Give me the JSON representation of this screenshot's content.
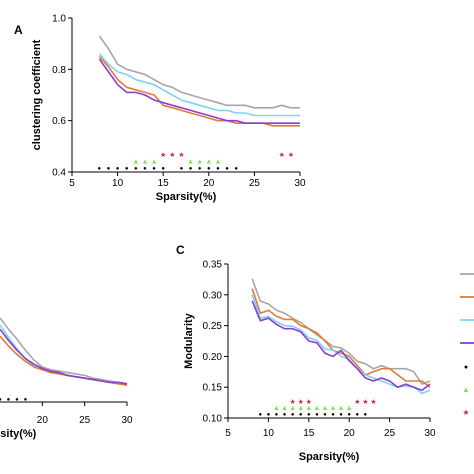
{
  "chart_data": [
    {
      "panel": "A",
      "type": "line",
      "xlabel": "Sparsity(%)",
      "ylabel": "clustering coefficient",
      "xlim": [
        5,
        30
      ],
      "ylim": [
        0.4,
        1.0
      ],
      "xticks": [
        "5",
        "10",
        "15",
        "20",
        "25",
        "30"
      ],
      "yticks": [
        "0.4",
        "0.6",
        "0.8",
        "1.0"
      ],
      "x": [
        8,
        9,
        10,
        11,
        12,
        13,
        14,
        15,
        16,
        17,
        18,
        19,
        20,
        21,
        22,
        23,
        24,
        25,
        26,
        27,
        28,
        29,
        30
      ],
      "series": [
        {
          "color": "#a6a6a6",
          "values": [
            0.93,
            0.88,
            0.82,
            0.8,
            0.79,
            0.78,
            0.76,
            0.74,
            0.73,
            0.71,
            0.7,
            0.69,
            0.68,
            0.67,
            0.66,
            0.66,
            0.66,
            0.65,
            0.65,
            0.65,
            0.66,
            0.65,
            0.65
          ]
        },
        {
          "color": "#7fd3ee",
          "values": [
            0.86,
            0.82,
            0.79,
            0.78,
            0.76,
            0.75,
            0.74,
            0.72,
            0.7,
            0.68,
            0.67,
            0.66,
            0.65,
            0.64,
            0.64,
            0.63,
            0.63,
            0.62,
            0.62,
            0.62,
            0.62,
            0.62,
            0.62
          ]
        },
        {
          "color": "#e07b39",
          "values": [
            0.85,
            0.81,
            0.76,
            0.73,
            0.72,
            0.71,
            0.7,
            0.66,
            0.65,
            0.64,
            0.63,
            0.62,
            0.61,
            0.6,
            0.6,
            0.59,
            0.59,
            0.59,
            0.59,
            0.58,
            0.58,
            0.58,
            0.58
          ]
        },
        {
          "color": "#8a3fd0",
          "values": [
            0.84,
            0.79,
            0.74,
            0.71,
            0.71,
            0.7,
            0.68,
            0.67,
            0.66,
            0.65,
            0.64,
            0.63,
            0.62,
            0.61,
            0.6,
            0.6,
            0.59,
            0.59,
            0.59,
            0.59,
            0.59,
            0.59,
            0.59
          ]
        }
      ],
      "markers": [
        {
          "symbol": "●",
          "color": "#000000",
          "x": [
            8,
            9,
            10,
            11,
            12,
            13,
            14,
            15,
            17,
            18,
            19,
            20,
            21,
            22,
            23
          ],
          "y": 0.42
        },
        {
          "symbol": "▲",
          "color": "#7ee05a",
          "x": [
            12,
            13,
            14,
            18,
            19,
            20,
            21
          ],
          "y": 0.445
        },
        {
          "symbol": "★",
          "color": "#c0304a",
          "x": [
            15,
            16,
            17,
            28,
            29
          ],
          "y": 0.47
        }
      ]
    },
    {
      "panel": "",
      "type": "line",
      "xlabel": "rsity(%)",
      "ylabel": "",
      "xlim": [
        15,
        30
      ],
      "ylim": [
        0,
        1
      ],
      "xticks": [
        "20",
        "25",
        "30"
      ],
      "yticks": [],
      "x": [
        15,
        16,
        17,
        18,
        19,
        20,
        21,
        22,
        23,
        24,
        25,
        26,
        27,
        28,
        29,
        30
      ],
      "series": [
        {
          "color": "#a6a6a6",
          "values": [
            0.6,
            0.52,
            0.45,
            0.37,
            0.3,
            0.25,
            0.23,
            0.22,
            0.21,
            0.2,
            0.19,
            0.17,
            0.16,
            0.15,
            0.14,
            0.13
          ]
        },
        {
          "color": "#7fd3ee",
          "values": [
            0.55,
            0.46,
            0.38,
            0.31,
            0.26,
            0.24,
            0.22,
            0.2,
            0.19,
            0.18,
            0.17,
            0.16,
            0.15,
            0.14,
            0.13,
            0.12
          ]
        },
        {
          "color": "#e07b39",
          "values": [
            0.47,
            0.4,
            0.34,
            0.29,
            0.25,
            0.23,
            0.21,
            0.2,
            0.19,
            0.18,
            0.17,
            0.16,
            0.15,
            0.14,
            0.13,
            0.12
          ]
        },
        {
          "color": "#8a3fd0",
          "values": [
            0.52,
            0.44,
            0.37,
            0.31,
            0.27,
            0.24,
            0.22,
            0.21,
            0.19,
            0.18,
            0.17,
            0.16,
            0.15,
            0.14,
            0.14,
            0.13
          ]
        }
      ],
      "markers": [
        {
          "symbol": "●",
          "color": "#000000",
          "x": [
            15,
            16,
            17,
            18
          ],
          "y": 0.03
        }
      ]
    },
    {
      "panel": "C",
      "type": "line",
      "xlabel": "Sparsity(%)",
      "ylabel": "Modularity",
      "xlim": [
        5,
        30
      ],
      "ylim": [
        0.1,
        0.35
      ],
      "xticks": [
        "5",
        "10",
        "15",
        "20",
        "25",
        "30"
      ],
      "yticks": [
        "0.10",
        "0.15",
        "0.20",
        "0.25",
        "0.30",
        "0.35"
      ],
      "x": [
        8,
        9,
        10,
        11,
        12,
        13,
        14,
        15,
        16,
        17,
        18,
        19,
        20,
        21,
        22,
        23,
        24,
        25,
        26,
        27,
        28,
        29,
        30
      ],
      "series": [
        {
          "color": "#a6a6a6",
          "values": [
            0.326,
            0.29,
            0.285,
            0.275,
            0.27,
            0.262,
            0.255,
            0.245,
            0.235,
            0.226,
            0.216,
            0.214,
            0.205,
            0.192,
            0.188,
            0.18,
            0.185,
            0.18,
            0.18,
            0.18,
            0.175,
            0.155,
            0.16
          ]
        },
        {
          "color": "#e07b39",
          "values": [
            0.31,
            0.27,
            0.275,
            0.265,
            0.26,
            0.26,
            0.25,
            0.245,
            0.238,
            0.225,
            0.21,
            0.205,
            0.2,
            0.185,
            0.17,
            0.175,
            0.18,
            0.18,
            0.17,
            0.16,
            0.16,
            0.16,
            0.15
          ]
        },
        {
          "color": "#7fd3ee",
          "values": [
            0.3,
            0.262,
            0.265,
            0.256,
            0.25,
            0.249,
            0.243,
            0.23,
            0.226,
            0.212,
            0.21,
            0.2,
            0.195,
            0.18,
            0.17,
            0.165,
            0.16,
            0.155,
            0.15,
            0.152,
            0.15,
            0.14,
            0.145
          ]
        },
        {
          "color": "#8a3fd0",
          "values": [
            0.29,
            0.258,
            0.262,
            0.252,
            0.245,
            0.245,
            0.24,
            0.225,
            0.222,
            0.205,
            0.2,
            0.21,
            0.193,
            0.18,
            0.165,
            0.16,
            0.165,
            0.16,
            0.15,
            0.155,
            0.15,
            0.145,
            0.155
          ]
        }
      ],
      "markers": [
        {
          "symbol": "●",
          "color": "#000000",
          "x": [
            9,
            10,
            11,
            12,
            13,
            14,
            15,
            16,
            17,
            18,
            19,
            20,
            21,
            22
          ],
          "y": 0.108
        },
        {
          "symbol": "▲",
          "color": "#7ee05a",
          "x": [
            11,
            12,
            13,
            14,
            15,
            16,
            17,
            18,
            19,
            20
          ],
          "y": 0.118
        },
        {
          "symbol": "★",
          "color": "#c0304a",
          "x": [
            13,
            14,
            15,
            21,
            22,
            23
          ],
          "y": 0.128
        }
      ]
    }
  ],
  "legend": {
    "items": [
      {
        "kind": "line",
        "color": "#a6a6a6"
      },
      {
        "kind": "line",
        "color": "#e07b39"
      },
      {
        "kind": "line",
        "color": "#7fd3ee"
      },
      {
        "kind": "line",
        "color": "#8a3fd0"
      },
      {
        "kind": "marker",
        "symbol": "●",
        "color": "#000000"
      },
      {
        "kind": "marker",
        "symbol": "▲",
        "color": "#7ee05a"
      },
      {
        "kind": "marker",
        "symbol": "★",
        "color": "#c0304a"
      }
    ]
  }
}
